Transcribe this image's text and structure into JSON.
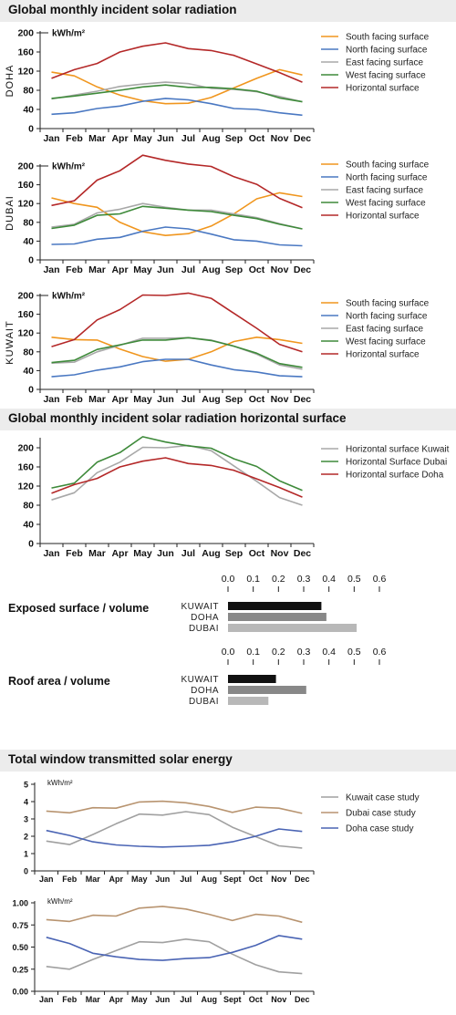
{
  "sections": {
    "s1": "Global monthly incident solar radiation",
    "s2": "Global monthly incident solar radiation horizontal surface",
    "s3": "Total window transmitted solar energy"
  },
  "colors": {
    "south": "#f0961e",
    "north": "#4a78c2",
    "east": "#a8a8a8",
    "west": "#3e8a3a",
    "horizontal": "#b42828",
    "kuwait_case": "#a0a0a0",
    "dubai_case": "#b89470",
    "doha_case": "#4a64b4",
    "bar_black": "#111111",
    "bar_dark": "#888888",
    "bar_light": "#b8b8b8"
  },
  "chart_data": [
    {
      "id": "doha",
      "type": "line",
      "title": "Global monthly incident solar radiation",
      "ylabel": "DOHA",
      "unit": "kWh/m²",
      "ylim": [
        0,
        200
      ],
      "yticks": [
        0,
        40,
        80,
        120,
        160,
        200
      ],
      "categories": [
        "Jan",
        "Feb",
        "Mar",
        "Apr",
        "May",
        "Jun",
        "Jul",
        "Aug",
        "Sep",
        "Oct",
        "Nov",
        "Dec"
      ],
      "series": [
        {
          "name": "South facing surface",
          "color": "south",
          "values": [
            118,
            110,
            87,
            70,
            58,
            52,
            53,
            65,
            85,
            105,
            123,
            112
          ]
        },
        {
          "name": "North facing surface",
          "color": "north",
          "values": [
            30,
            33,
            42,
            47,
            57,
            63,
            60,
            52,
            42,
            40,
            33,
            28
          ]
        },
        {
          "name": "East facing surface",
          "color": "east",
          "values": [
            62,
            70,
            78,
            88,
            93,
            97,
            94,
            84,
            82,
            77,
            67,
            56
          ]
        },
        {
          "name": "West facing surface",
          "color": "west",
          "values": [
            63,
            68,
            74,
            80,
            87,
            91,
            86,
            86,
            83,
            78,
            64,
            56
          ]
        },
        {
          "name": "Horizontal surface",
          "color": "horizontal",
          "values": [
            105,
            123,
            136,
            160,
            172,
            179,
            167,
            163,
            153,
            135,
            117,
            97
          ]
        }
      ]
    },
    {
      "id": "dubai",
      "type": "line",
      "ylabel": "DUBAI",
      "unit": "kWh/m²",
      "ylim": [
        0,
        200
      ],
      "yticks": [
        0,
        40,
        80,
        120,
        160,
        200
      ],
      "categories": [
        "Jan",
        "Feb",
        "Mar",
        "Apr",
        "May",
        "Jun",
        "Jul",
        "Aug",
        "Sep",
        "Oct",
        "Nov",
        "Dec"
      ],
      "series": [
        {
          "name": "South facing surface",
          "color": "south",
          "values": [
            132,
            120,
            112,
            80,
            60,
            52,
            56,
            72,
            98,
            130,
            143,
            135
          ]
        },
        {
          "name": "North facing surface",
          "color": "north",
          "values": [
            33,
            34,
            44,
            48,
            61,
            70,
            66,
            55,
            43,
            40,
            32,
            30
          ]
        },
        {
          "name": "East facing surface",
          "color": "east",
          "values": [
            70,
            76,
            100,
            108,
            120,
            112,
            106,
            106,
            98,
            90,
            77,
            66
          ]
        },
        {
          "name": "West facing surface",
          "color": "west",
          "values": [
            67,
            74,
            95,
            98,
            114,
            110,
            106,
            103,
            95,
            88,
            76,
            66
          ]
        },
        {
          "name": "Horizontal surface",
          "color": "horizontal",
          "values": [
            116,
            126,
            170,
            190,
            223,
            212,
            204,
            199,
            177,
            161,
            131,
            111
          ]
        }
      ]
    },
    {
      "id": "kuwait",
      "type": "line",
      "ylabel": "KUWAIT",
      "unit": "kWh/m²",
      "ylim": [
        0,
        200
      ],
      "yticks": [
        0,
        40,
        80,
        120,
        160,
        200
      ],
      "categories": [
        "Jan",
        "Feb",
        "Mar",
        "Apr",
        "May",
        "Jun",
        "Jul",
        "Aug",
        "Sep",
        "Oct",
        "Nov",
        "Dec"
      ],
      "series": [
        {
          "name": "South facing surface",
          "color": "south",
          "values": [
            111,
            106,
            105,
            86,
            70,
            60,
            64,
            80,
            102,
            111,
            106,
            98
          ]
        },
        {
          "name": "North facing surface",
          "color": "north",
          "values": [
            27,
            31,
            41,
            48,
            59,
            64,
            64,
            52,
            42,
            37,
            29,
            27
          ]
        },
        {
          "name": "East facing surface",
          "color": "east",
          "values": [
            56,
            58,
            80,
            94,
            109,
            109,
            110,
            105,
            92,
            75,
            52,
            43
          ]
        },
        {
          "name": "West facing surface",
          "color": "west",
          "values": [
            57,
            62,
            85,
            95,
            105,
            105,
            110,
            104,
            92,
            77,
            55,
            47
          ]
        },
        {
          "name": "Horizontal surface",
          "color": "horizontal",
          "values": [
            91,
            106,
            148,
            170,
            201,
            200,
            205,
            194,
            162,
            130,
            96,
            80
          ]
        }
      ]
    },
    {
      "id": "horizontal",
      "type": "line",
      "title": "Global monthly incident solar radiation horizontal surface",
      "ylim": [
        0,
        220
      ],
      "yticks": [
        0,
        40,
        80,
        120,
        160,
        200
      ],
      "categories": [
        "Jan",
        "Feb",
        "Mar",
        "Apr",
        "May",
        "Jun",
        "Jul",
        "Aug",
        "Sep",
        "Oct",
        "Nov",
        "Dec"
      ],
      "series": [
        {
          "name": "Horizontal surface Kuwait",
          "color": "east",
          "values": [
            91,
            106,
            148,
            170,
            201,
            200,
            205,
            194,
            162,
            130,
            96,
            80
          ]
        },
        {
          "name": "Horizontal Surface Dubai",
          "color": "west",
          "values": [
            116,
            126,
            170,
            190,
            223,
            212,
            204,
            199,
            177,
            161,
            131,
            111
          ]
        },
        {
          "name": "Horizontal surface Doha",
          "color": "horizontal",
          "values": [
            105,
            123,
            136,
            160,
            172,
            179,
            167,
            163,
            153,
            135,
            117,
            97
          ]
        }
      ]
    },
    {
      "id": "exposed",
      "type": "bar",
      "label": "Exposed surface / volume",
      "xlim": [
        0,
        0.6
      ],
      "xticks": [
        "0.0",
        "0.1",
        "0.2",
        "0.3",
        "0.4",
        "0.5",
        "0.6"
      ],
      "categories": [
        "KUWAIT",
        "DOHA",
        "DUBAI"
      ],
      "values": [
        0.37,
        0.39,
        0.51
      ],
      "colors": [
        "bar_black",
        "bar_dark",
        "bar_light"
      ]
    },
    {
      "id": "roof",
      "type": "bar",
      "label": "Roof area / volume",
      "xlim": [
        0,
        0.6
      ],
      "xticks": [
        "0.0",
        "0.1",
        "0.2",
        "0.3",
        "0.4",
        "0.5",
        "0.6"
      ],
      "categories": [
        "KUWAIT",
        "DOHA",
        "DUBAI"
      ],
      "values": [
        0.19,
        0.31,
        0.16
      ],
      "colors": [
        "bar_black",
        "bar_dark",
        "bar_light"
      ]
    },
    {
      "id": "window_abs",
      "type": "line",
      "title": "Total window transmitted solar energy",
      "unit": "kWh/m²",
      "ylim": [
        0,
        5
      ],
      "yticks": [
        "0",
        "1",
        "2",
        "3",
        "4",
        "5"
      ],
      "categories": [
        "Jan",
        "Feb",
        "Mar",
        "Apr",
        "May",
        "Jun",
        "Jul",
        "Aug",
        "Sept",
        "Oct",
        "Nov",
        "Dec"
      ],
      "series": [
        {
          "name": "Kuwait case study",
          "color": "kuwait_case",
          "values": [
            1.72,
            1.52,
            2.1,
            2.72,
            3.28,
            3.22,
            3.42,
            3.25,
            2.52,
            1.98,
            1.45,
            1.32
          ]
        },
        {
          "name": "Dubai case study",
          "color": "dubai_case",
          "values": [
            3.45,
            3.35,
            3.65,
            3.62,
            3.98,
            4.02,
            3.93,
            3.72,
            3.38,
            3.68,
            3.62,
            3.32
          ]
        },
        {
          "name": "Doha case study",
          "color": "doha_case",
          "values": [
            2.33,
            2.05,
            1.68,
            1.5,
            1.42,
            1.38,
            1.42,
            1.48,
            1.68,
            2.0,
            2.42,
            2.28
          ]
        }
      ]
    },
    {
      "id": "window_norm",
      "type": "line",
      "unit": "kWh/m²",
      "ylim": [
        0,
        1
      ],
      "yticks": [
        "0.00",
        "0.25",
        "0.50",
        "0.75",
        "1.00"
      ],
      "categories": [
        "Jan",
        "Feb",
        "Mar",
        "Apr",
        "May",
        "Jun",
        "Jul",
        "Aug",
        "Sept",
        "Oct",
        "Nov",
        "Dec"
      ],
      "series": [
        {
          "name": "Kuwait case study",
          "color": "kuwait_case",
          "values": [
            0.28,
            0.25,
            0.36,
            0.46,
            0.56,
            0.55,
            0.59,
            0.56,
            0.42,
            0.3,
            0.22,
            0.2
          ]
        },
        {
          "name": "Dubai case study",
          "color": "dubai_case",
          "values": [
            0.81,
            0.79,
            0.86,
            0.85,
            0.94,
            0.96,
            0.93,
            0.87,
            0.8,
            0.87,
            0.85,
            0.78
          ]
        },
        {
          "name": "Doha case study",
          "color": "doha_case",
          "values": [
            0.61,
            0.54,
            0.43,
            0.39,
            0.36,
            0.35,
            0.37,
            0.38,
            0.44,
            0.52,
            0.63,
            0.59
          ]
        }
      ]
    }
  ]
}
